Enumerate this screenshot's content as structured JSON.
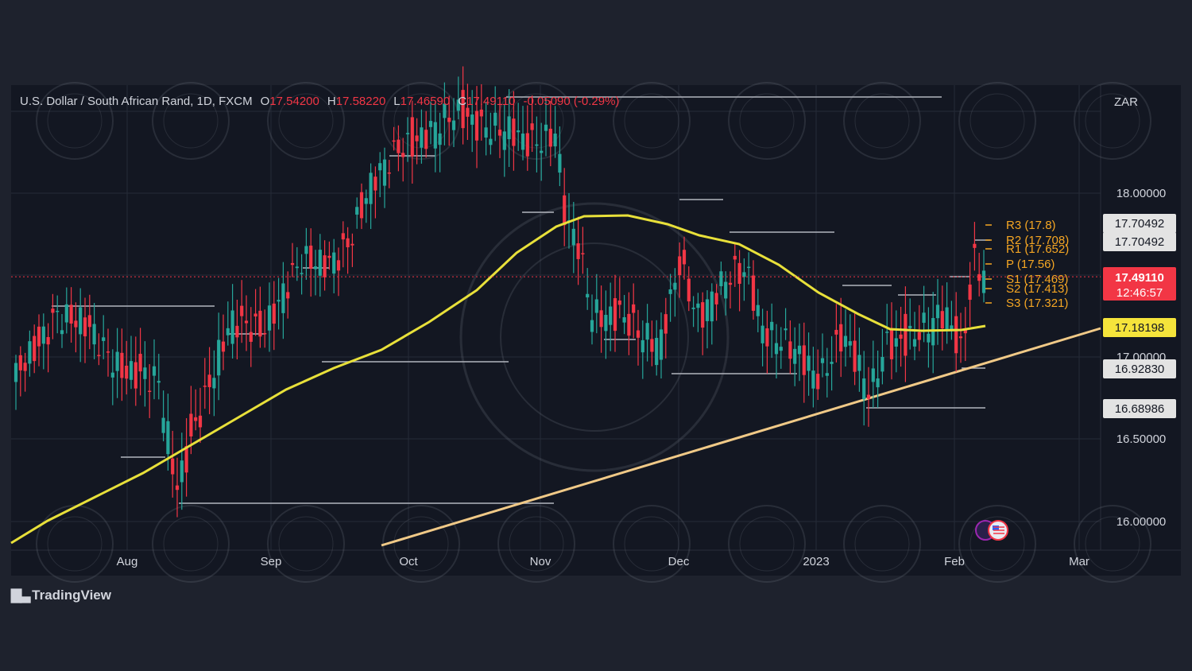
{
  "header": {
    "title": "U.S. Dollar / South African Rand, 1D, FXCM",
    "o_label": "O",
    "o_value": "17.54200",
    "h_label": "H",
    "h_value": "17.58220",
    "l_label": "L",
    "l_value": "17.46590",
    "c_label": "C",
    "c_value": "17.49110",
    "change": "-0.05090 (-0.29%)"
  },
  "branding": {
    "label": "TradingView"
  },
  "colors": {
    "up": "#26a69a",
    "down": "#f23645",
    "ma": "#e8e03a",
    "trend": "#f0c987",
    "pivot": "#f5a623",
    "bg": "#131722"
  },
  "chart_data": {
    "type": "candlestick",
    "currency": "ZAR",
    "x_ticks": [
      "Aug",
      "Sep",
      "Oct",
      "Nov",
      "Dec",
      "2023",
      "Feb",
      "Mar"
    ],
    "y_ticks": [
      "16.00000",
      "16.50000",
      "17.00000",
      "18.00000"
    ],
    "ylim": [
      15.86,
      18.58
    ],
    "grid": true,
    "price_scale_labels": [
      {
        "id": "r2-label",
        "value": "17.70492",
        "style": "white"
      },
      {
        "id": "r1-label",
        "value": "17.70492",
        "style": "white"
      },
      {
        "id": "last-price",
        "value": "17.49110",
        "sub": "12:46:57",
        "style": "red"
      },
      {
        "id": "ma-value",
        "value": "17.18198",
        "style": "yellow"
      },
      {
        "id": "s-label-1",
        "value": "16.92830",
        "style": "white"
      },
      {
        "id": "s-label-2",
        "value": "16.68986",
        "style": "white"
      }
    ],
    "pivots": [
      {
        "label": "R3 (17.8)",
        "value": 17.8
      },
      {
        "label": "R2 (17.708)",
        "value": 17.708
      },
      {
        "label": "R1 (17.652)",
        "value": 17.652
      },
      {
        "label": "P (17.56)",
        "value": 17.56
      },
      {
        "label": "S1 (17.469)",
        "value": 17.469
      },
      {
        "label": "S2 (17.413)",
        "value": 17.413
      },
      {
        "label": "S3 (17.321)",
        "value": 17.321
      }
    ],
    "last_price": 17.4911
  }
}
